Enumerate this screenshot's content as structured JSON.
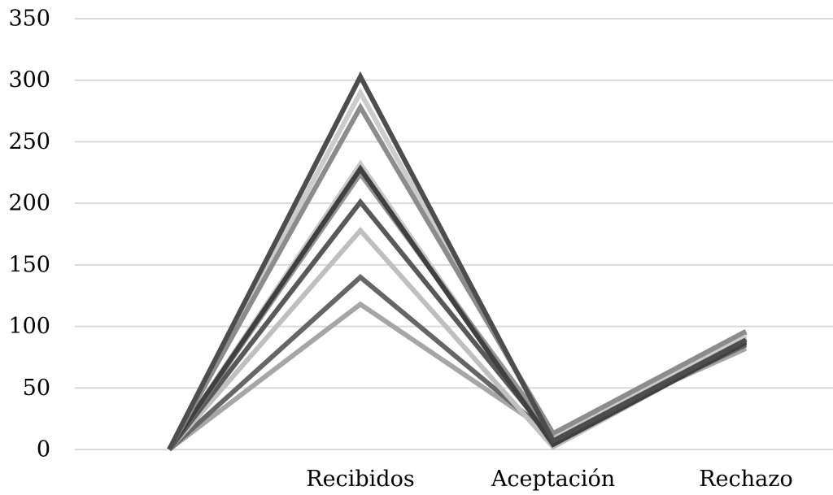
{
  "chart_data": {
    "type": "line",
    "title": "",
    "xlabel": "",
    "ylabel": "",
    "categories": [
      "",
      "Recibidos",
      "Aceptación",
      "Rechazo"
    ],
    "ylim": [
      0,
      350
    ],
    "yticks": [
      0,
      50,
      100,
      150,
      200,
      250,
      300,
      350
    ],
    "grid": true,
    "legend": "none",
    "series": [
      {
        "color": "#a6a6a6",
        "values": [
          0,
          118,
          12,
          82
        ]
      },
      {
        "color": "#666666",
        "values": [
          0,
          140,
          10,
          85
        ]
      },
      {
        "color": "#bfbfbf",
        "values": [
          0,
          178,
          2,
          88
        ]
      },
      {
        "color": "#595959",
        "values": [
          0,
          201,
          8,
          90
        ]
      },
      {
        "color": "#c8c8c8",
        "values": [
          0,
          232,
          5,
          92
        ]
      },
      {
        "color": "#939393",
        "values": [
          0,
          224,
          11,
          95
        ]
      },
      {
        "color": "#404040",
        "values": [
          0,
          228,
          4,
          87
        ]
      },
      {
        "color": "#cccccc",
        "values": [
          0,
          290,
          9,
          93
        ]
      },
      {
        "color": "#8c8c8c",
        "values": [
          0,
          278,
          13,
          96
        ]
      },
      {
        "color": "#4d4d4d",
        "values": [
          0,
          303,
          7,
          89
        ]
      }
    ]
  }
}
